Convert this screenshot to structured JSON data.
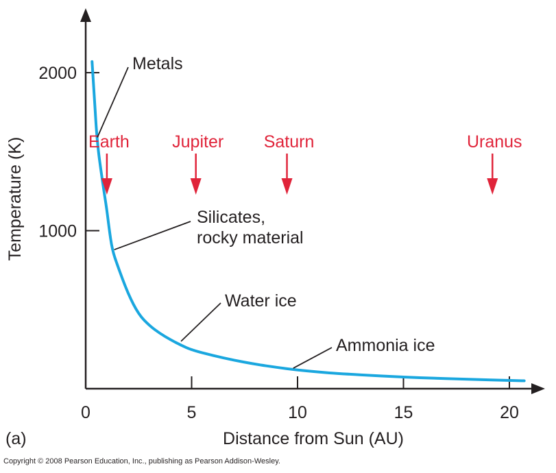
{
  "chart_data": {
    "type": "line",
    "panel_label": "(a)",
    "xlabel": "Distance from Sun (AU)",
    "ylabel": "Temperature (K)",
    "xlim": [
      0,
      21.5
    ],
    "ylim": [
      0,
      2450
    ],
    "x_ticks": [
      0,
      5,
      10,
      15,
      20
    ],
    "y_ticks": [
      1000,
      2000
    ],
    "grid": false,
    "series": [
      {
        "color": "#1aa7df",
        "points": [
          [
            0.3,
            2070
          ],
          [
            0.4,
            1870
          ],
          [
            0.5,
            1640
          ],
          [
            0.6,
            1500
          ],
          [
            0.7,
            1400
          ],
          [
            0.85,
            1260
          ],
          [
            1.0,
            1130
          ],
          [
            1.1,
            1020
          ],
          [
            1.25,
            880
          ],
          [
            1.5,
            780
          ],
          [
            2.0,
            600
          ],
          [
            2.5,
            470
          ],
          [
            3.0,
            400
          ],
          [
            3.5,
            350
          ],
          [
            4.0,
            310
          ],
          [
            4.5,
            275
          ],
          [
            5.0,
            245
          ],
          [
            6.0,
            210
          ],
          [
            7.0,
            180
          ],
          [
            8.0,
            155
          ],
          [
            9.0,
            135
          ],
          [
            10.0,
            118
          ],
          [
            11.0,
            105
          ],
          [
            12.0,
            95
          ],
          [
            14.0,
            80
          ],
          [
            16.0,
            68
          ],
          [
            18.0,
            60
          ],
          [
            20.0,
            52
          ],
          [
            20.7,
            50
          ]
        ]
      }
    ],
    "planets": [
      {
        "name": "Earth",
        "x": 1,
        "color": "#e0243a"
      },
      {
        "name": "Jupiter",
        "x": 5.2,
        "color": "#e0243a"
      },
      {
        "name": "Saturn",
        "x": 9.5,
        "color": "#e0243a"
      },
      {
        "name": "Uranus",
        "x": 19.2,
        "color": "#e0243a"
      }
    ],
    "annotations": [
      {
        "lines": [
          "Metals"
        ],
        "x": 0.55,
        "y": 1590
      },
      {
        "lines": [
          "Silicates,",
          "rocky material"
        ],
        "x": 1.35,
        "y": 880
      },
      {
        "lines": [
          "Water ice"
        ],
        "x": 4.5,
        "y": 300
      },
      {
        "lines": [
          "Ammonia ice"
        ],
        "x": 9.8,
        "y": 130
      }
    ]
  },
  "footer": {
    "copyright": "Copyright © 2008 Pearson Education, Inc., publishing as Pearson Addison-Wesley."
  }
}
